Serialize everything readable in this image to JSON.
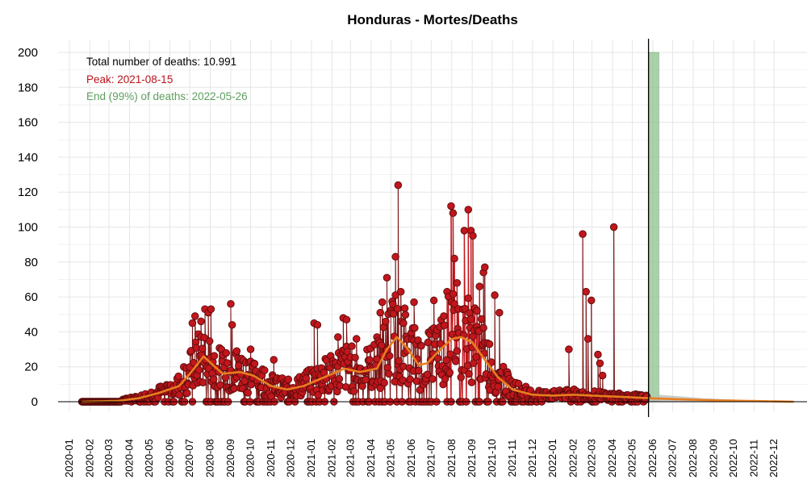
{
  "chart_data": {
    "type": "scatter",
    "title": "Honduras - Mortes/Deaths",
    "xlabel": "",
    "ylabel": "",
    "ylim": [
      0,
      200
    ],
    "yticks": [
      0,
      20,
      40,
      60,
      80,
      100,
      120,
      140,
      160,
      180,
      200
    ],
    "xlim": [
      "2019-12-15",
      "2023-01-20"
    ],
    "xticks": [
      "2020-01",
      "2020-02",
      "2020-03",
      "2020-04",
      "2020-05",
      "2020-06",
      "2020-07",
      "2020-08",
      "2020-09",
      "2020-10",
      "2020-11",
      "2020-12",
      "2021-01",
      "2021-02",
      "2021-03",
      "2021-04",
      "2021-05",
      "2021-06",
      "2021-07",
      "2021-08",
      "2021-09",
      "2021-10",
      "2021-11",
      "2021-12",
      "2022-01",
      "2022-02",
      "2022-03",
      "2022-04",
      "2022-05",
      "2022-06",
      "2022-07",
      "2022-08",
      "2022-09",
      "2022-10",
      "2022-11",
      "2022-12"
    ],
    "grid": true,
    "annotations": {
      "total": "Total number of deaths: 10.991",
      "peak": "Peak: 2021-08-15",
      "end": "End (99%) of deaths: 2022-05-26"
    },
    "colors": {
      "points": "#c0161c",
      "point_edge": "#5a0c0c",
      "stems": "#7a1010",
      "peak_fill": "#c0161c",
      "smooth": "#e87e1e",
      "forecast_band": "#8fc18f",
      "forecast_gray": "#bdbdbd",
      "peak_text": "#b8141b",
      "end_text": "#5e9e5e"
    },
    "last_observed": "2022-05-23",
    "forecast_band": {
      "start": "2022-05-26",
      "end": "2022-06-10",
      "height": 200
    },
    "forecast_end": "2022-12-31",
    "observed_notable": [
      {
        "x": "2020-07-05",
        "y": 45
      },
      {
        "x": "2020-07-09",
        "y": 49
      },
      {
        "x": "2020-07-18",
        "y": 46
      },
      {
        "x": "2020-07-24",
        "y": 53
      },
      {
        "x": "2020-07-29",
        "y": 51
      },
      {
        "x": "2020-08-02",
        "y": 53
      },
      {
        "x": "2020-09-01",
        "y": 56
      },
      {
        "x": "2020-09-03",
        "y": 44
      },
      {
        "x": "2020-09-10",
        "y": 29
      },
      {
        "x": "2020-10-01",
        "y": 30
      },
      {
        "x": "2020-11-05",
        "y": 24
      },
      {
        "x": "2020-12-20",
        "y": 14
      },
      {
        "x": "2021-01-05",
        "y": 45
      },
      {
        "x": "2021-01-10",
        "y": 44
      },
      {
        "x": "2021-02-10",
        "y": 37
      },
      {
        "x": "2021-02-18",
        "y": 48
      },
      {
        "x": "2021-02-23",
        "y": 47
      },
      {
        "x": "2021-03-10",
        "y": 36
      },
      {
        "x": "2021-04-10",
        "y": 37
      },
      {
        "x": "2021-04-15",
        "y": 51
      },
      {
        "x": "2021-04-18",
        "y": 57
      },
      {
        "x": "2021-04-25",
        "y": 71
      },
      {
        "x": "2021-05-08",
        "y": 83
      },
      {
        "x": "2021-05-12",
        "y": 124
      },
      {
        "x": "2021-05-16",
        "y": 63
      },
      {
        "x": "2021-05-20",
        "y": 45
      },
      {
        "x": "2021-06-05",
        "y": 57
      },
      {
        "x": "2021-07-05",
        "y": 58
      },
      {
        "x": "2021-07-25",
        "y": 63
      },
      {
        "x": "2021-07-31",
        "y": 112
      },
      {
        "x": "2021-08-03",
        "y": 108
      },
      {
        "x": "2021-08-05",
        "y": 82
      },
      {
        "x": "2021-08-09",
        "y": 68
      },
      {
        "x": "2021-08-20",
        "y": 98
      },
      {
        "x": "2021-08-26",
        "y": 110
      },
      {
        "x": "2021-08-30",
        "y": 98
      },
      {
        "x": "2021-09-02",
        "y": 95
      },
      {
        "x": "2021-09-08",
        "y": 52
      },
      {
        "x": "2021-09-12",
        "y": 66
      },
      {
        "x": "2021-09-18",
        "y": 74
      },
      {
        "x": "2021-09-20",
        "y": 77
      },
      {
        "x": "2021-10-05",
        "y": 61
      },
      {
        "x": "2021-10-12",
        "y": 51
      },
      {
        "x": "2022-01-25",
        "y": 30
      },
      {
        "x": "2022-02-15",
        "y": 96
      },
      {
        "x": "2022-02-20",
        "y": 63
      },
      {
        "x": "2022-02-23",
        "y": 36
      },
      {
        "x": "2022-02-28",
        "y": 58
      },
      {
        "x": "2022-03-10",
        "y": 27
      },
      {
        "x": "2022-03-13",
        "y": 22
      },
      {
        "x": "2022-03-17",
        "y": 15
      },
      {
        "x": "2022-04-03",
        "y": 100
      }
    ],
    "trend_anchors": [
      {
        "x": "2020-01-20",
        "y": 0
      },
      {
        "x": "2020-03-15",
        "y": 0.5
      },
      {
        "x": "2020-04-15",
        "y": 2
      },
      {
        "x": "2020-05-15",
        "y": 5
      },
      {
        "x": "2020-06-15",
        "y": 9
      },
      {
        "x": "2020-07-01",
        "y": 16
      },
      {
        "x": "2020-07-22",
        "y": 26
      },
      {
        "x": "2020-08-05",
        "y": 21
      },
      {
        "x": "2020-08-20",
        "y": 16
      },
      {
        "x": "2020-09-15",
        "y": 17
      },
      {
        "x": "2020-10-05",
        "y": 15
      },
      {
        "x": "2020-11-01",
        "y": 9
      },
      {
        "x": "2020-11-25",
        "y": 7
      },
      {
        "x": "2020-12-20",
        "y": 9
      },
      {
        "x": "2021-01-20",
        "y": 14
      },
      {
        "x": "2021-02-20",
        "y": 19
      },
      {
        "x": "2021-03-15",
        "y": 17
      },
      {
        "x": "2021-04-10",
        "y": 19
      },
      {
        "x": "2021-04-25",
        "y": 30
      },
      {
        "x": "2021-05-10",
        "y": 37
      },
      {
        "x": "2021-05-25",
        "y": 31
      },
      {
        "x": "2021-06-12",
        "y": 21
      },
      {
        "x": "2021-06-25",
        "y": 22
      },
      {
        "x": "2021-07-15",
        "y": 30
      },
      {
        "x": "2021-08-01",
        "y": 36
      },
      {
        "x": "2021-08-15",
        "y": 37
      },
      {
        "x": "2021-09-01",
        "y": 34
      },
      {
        "x": "2021-09-20",
        "y": 24
      },
      {
        "x": "2021-10-10",
        "y": 14
      },
      {
        "x": "2021-11-01",
        "y": 7
      },
      {
        "x": "2021-12-01",
        "y": 4
      },
      {
        "x": "2022-01-01",
        "y": 3.5
      },
      {
        "x": "2022-02-01",
        "y": 4
      },
      {
        "x": "2022-03-01",
        "y": 3.5
      },
      {
        "x": "2022-04-01",
        "y": 3
      },
      {
        "x": "2022-05-01",
        "y": 2.5
      },
      {
        "x": "2022-05-26",
        "y": 2
      },
      {
        "x": "2022-07-01",
        "y": 1.5
      },
      {
        "x": "2022-09-01",
        "y": 0.8
      },
      {
        "x": "2022-12-31",
        "y": 0
      }
    ]
  }
}
